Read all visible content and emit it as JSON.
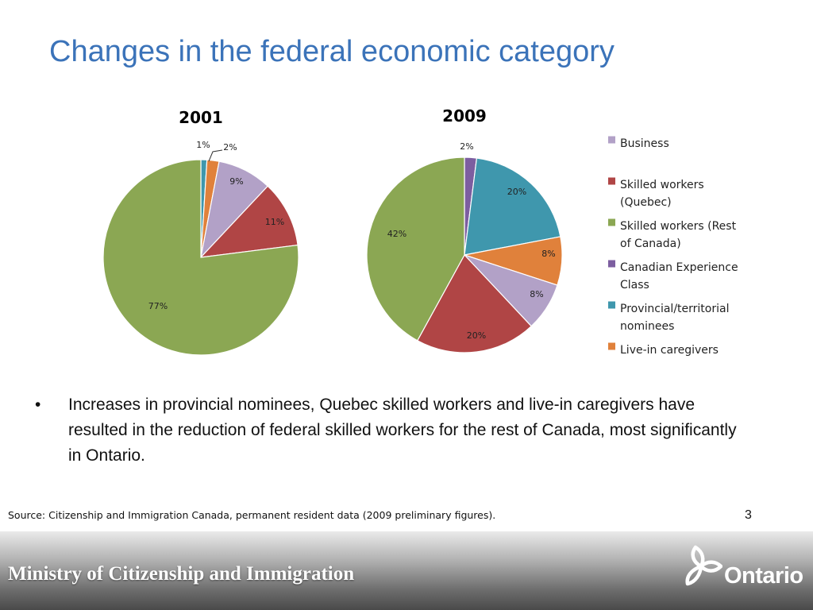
{
  "slide": {
    "title": "Changes in the federal economic category",
    "bullet_marker": "•",
    "bullet": "Increases in provincial nominees, Quebec skilled workers and live-in caregivers have resulted in the reduction of federal skilled workers for the rest of Canada, most significantly in Ontario.",
    "source": "Source: Citizenship and Immigration Canada, permanent resident data (2009 preliminary figures).",
    "page_number": "3"
  },
  "footer": {
    "ministry": "Ministry of Citizenship and Immigration",
    "logo_text": "Ontario",
    "logo_icon": "trillium-icon"
  },
  "colors": {
    "title": "#3b73b9",
    "Business": "#b2a1c7",
    "Skilled workers (Quebec)": "#b04545",
    "Skilled workers (Rest of Canada)": "#8ba753",
    "Canadian Experience Class": "#7c5ea0",
    "Provincial/territorial nominees": "#3f97ad",
    "Live-in caregivers": "#e0813b"
  },
  "chart_data": [
    {
      "type": "pie",
      "title": "2001",
      "slices": [
        {
          "name": "Provincial/territorial nominees",
          "value": 1,
          "label": "1%"
        },
        {
          "name": "Live-in caregivers",
          "value": 2,
          "label": "2%"
        },
        {
          "name": "Business",
          "value": 9,
          "label": "9%"
        },
        {
          "name": "Skilled workers (Quebec)",
          "value": 11,
          "label": "11%"
        },
        {
          "name": "Skilled workers (Rest of Canada)",
          "value": 77,
          "label": "77%"
        }
      ]
    },
    {
      "type": "pie",
      "title": "2009",
      "slices": [
        {
          "name": "Canadian Experience Class",
          "value": 2,
          "label": "2%"
        },
        {
          "name": "Provincial/territorial nominees",
          "value": 20,
          "label": "20%"
        },
        {
          "name": "Live-in caregivers",
          "value": 8,
          "label": "8%"
        },
        {
          "name": "Business",
          "value": 8,
          "label": "8%"
        },
        {
          "name": "Skilled workers (Quebec)",
          "value": 20,
          "label": "20%"
        },
        {
          "name": "Skilled workers (Rest of Canada)",
          "value": 42,
          "label": "42%"
        }
      ],
      "legend": {
        "position": "right",
        "entries": [
          {
            "name": "Business",
            "lines": [
              "Business"
            ]
          },
          {
            "name": "Skilled workers (Quebec)",
            "lines": [
              "Skilled workers",
              "(Quebec)"
            ]
          },
          {
            "name": "Skilled workers (Rest of Canada)",
            "lines": [
              "Skilled workers (Rest",
              "of Canada)"
            ]
          },
          {
            "name": "Canadian Experience Class",
            "lines": [
              "Canadian Experience",
              "Class"
            ]
          },
          {
            "name": "Provincial/territorial nominees",
            "lines": [
              "Provincial/territorial",
              "nominees"
            ]
          },
          {
            "name": "Live-in caregivers",
            "lines": [
              "Live-in caregivers"
            ]
          }
        ]
      }
    }
  ]
}
